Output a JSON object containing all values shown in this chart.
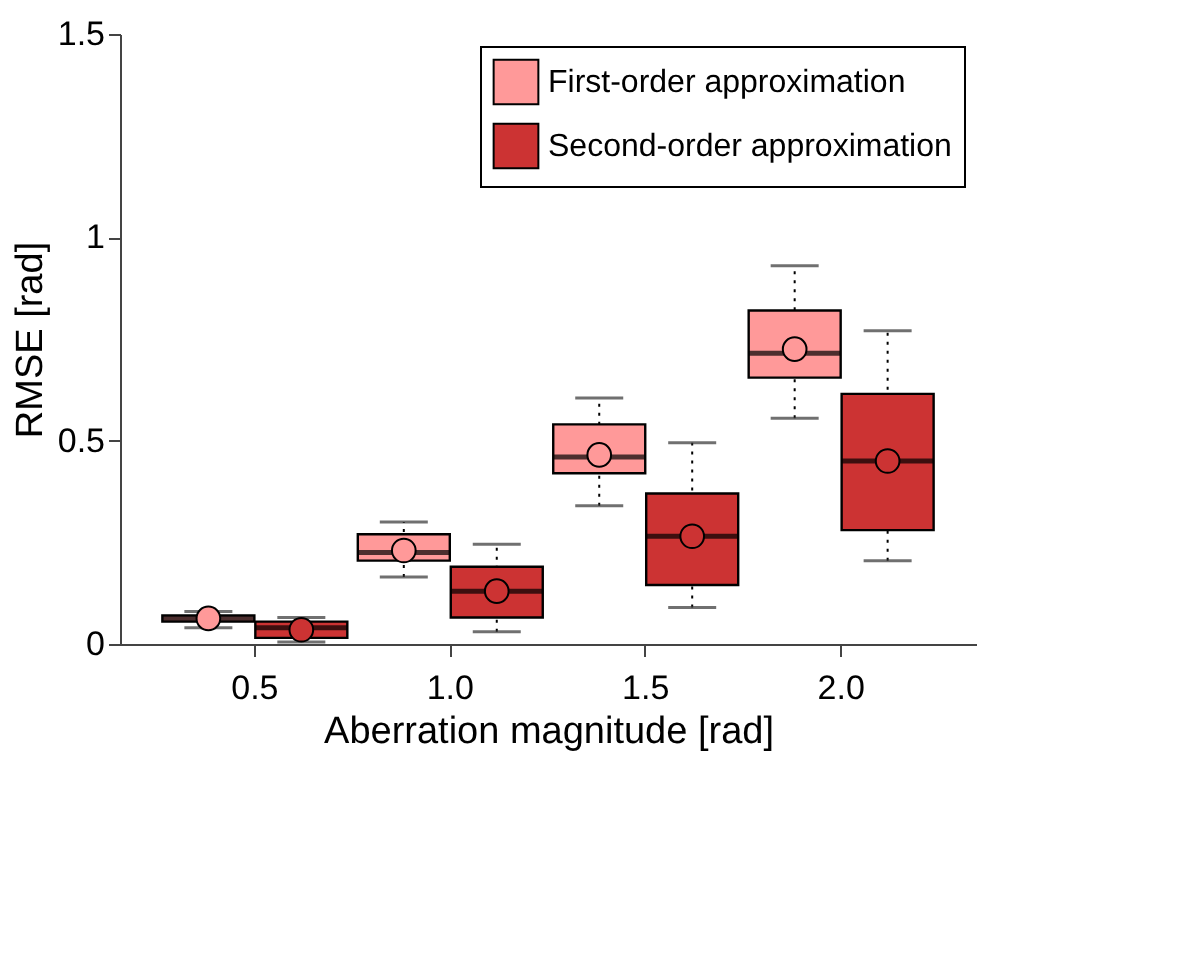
{
  "chart_data": {
    "type": "box",
    "xlabel": "Aberration magnitude [rad]",
    "ylabel": "RMSE [rad]",
    "categories": [
      "0.5",
      "1.0",
      "1.5",
      "2.0"
    ],
    "ylim": [
      0,
      1.5
    ],
    "yticks": [
      0,
      0.5,
      1,
      1.5
    ],
    "grid": false,
    "legend": "top right",
    "marker": "circle",
    "line_style": "dotted",
    "series": [
      {
        "name": "First-order approximation",
        "color": "#ff9999",
        "boxes": [
          {
            "low": 0.04,
            "q1": 0.055,
            "median": 0.062,
            "q3": 0.07,
            "high": 0.08,
            "mean": 0.063
          },
          {
            "low": 0.165,
            "q1": 0.205,
            "median": 0.225,
            "q3": 0.27,
            "high": 0.3,
            "mean": 0.23
          },
          {
            "low": 0.34,
            "q1": 0.42,
            "median": 0.46,
            "q3": 0.54,
            "high": 0.605,
            "mean": 0.465
          },
          {
            "low": 0.555,
            "q1": 0.655,
            "median": 0.715,
            "q3": 0.82,
            "high": 0.93,
            "mean": 0.725
          }
        ]
      },
      {
        "name": "Second-order approximation",
        "color": "#cc3333",
        "boxes": [
          {
            "low": 0.005,
            "q1": 0.015,
            "median": 0.04,
            "q3": 0.055,
            "high": 0.065,
            "mean": 0.035
          },
          {
            "low": 0.03,
            "q1": 0.065,
            "median": 0.13,
            "q3": 0.19,
            "high": 0.245,
            "mean": 0.13
          },
          {
            "low": 0.09,
            "q1": 0.145,
            "median": 0.265,
            "q3": 0.37,
            "high": 0.495,
            "mean": 0.265
          },
          {
            "low": 0.205,
            "q1": 0.28,
            "median": 0.45,
            "q3": 0.615,
            "high": 0.77,
            "mean": 0.45
          }
        ]
      }
    ]
  }
}
